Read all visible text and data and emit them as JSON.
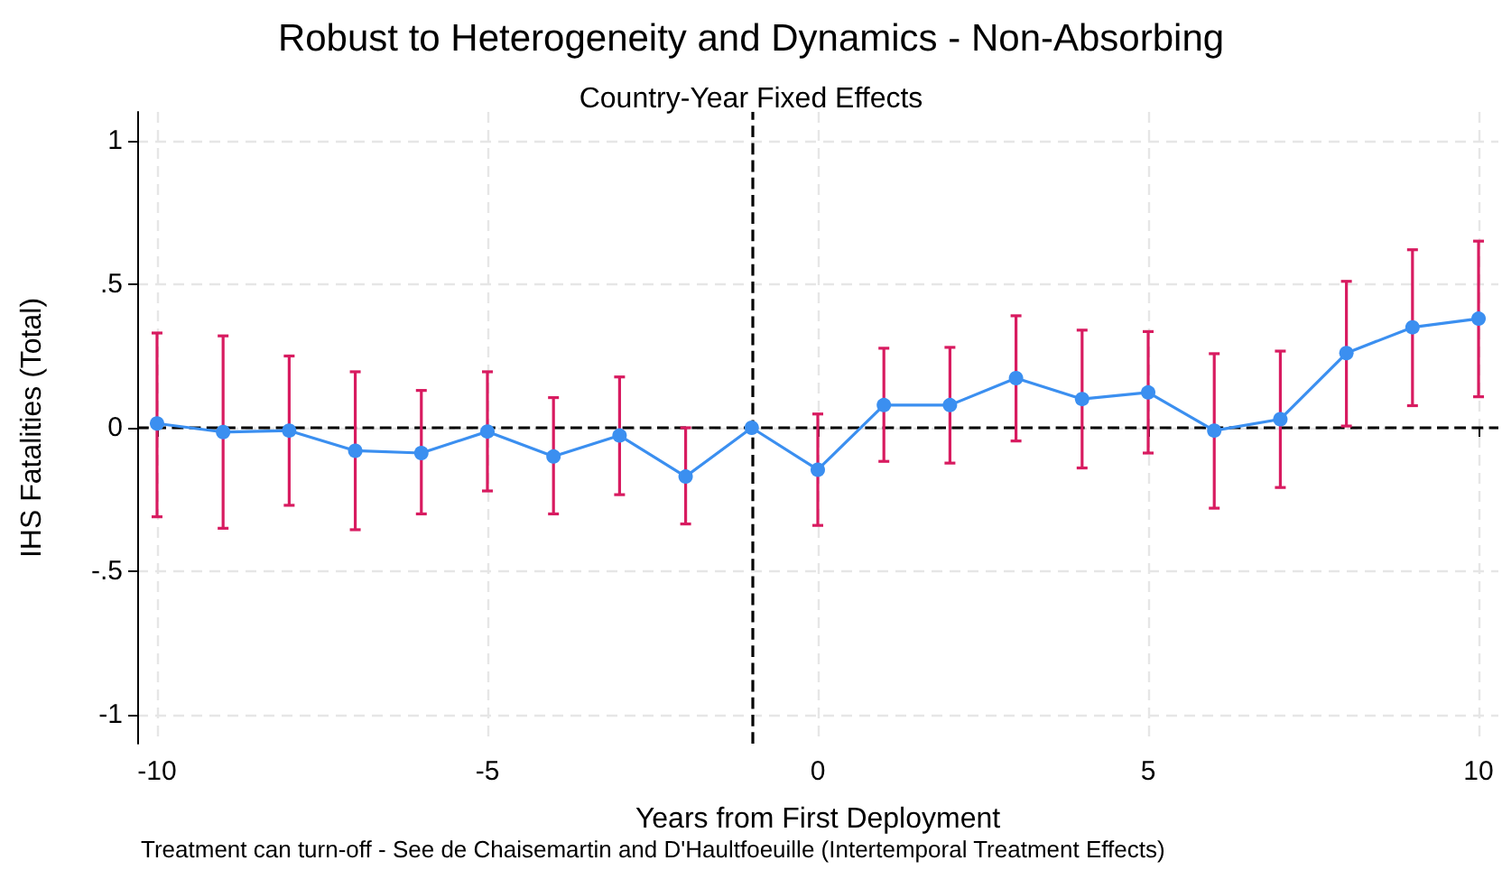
{
  "chart_data": {
    "type": "line",
    "title": "Robust to Heterogeneity and Dynamics - Non-Absorbing",
    "subtitle": "Country-Year Fixed Effects",
    "xlabel": "Years from First Deployment",
    "ylabel": "IHS Fatalities (Total)",
    "annotations": [
      "Treatment can turn-off - See de Chaisemartin and D'Haultfoeuille (Intertemporal Treatment Effects)"
    ],
    "x": [
      -10,
      -9,
      -8,
      -7,
      -6,
      -5,
      -4,
      -3,
      -2,
      -1,
      0,
      1,
      2,
      3,
      4,
      5,
      6,
      7,
      8,
      9,
      10
    ],
    "series": [
      {
        "color": "#3b8ff0",
        "values": [
          0.015,
          -0.015,
          -0.01,
          -0.08,
          -0.088,
          -0.013,
          -0.1,
          -0.027,
          -0.17,
          0,
          -0.146,
          0.079,
          0.079,
          0.173,
          0.1,
          0.123,
          -0.01,
          0.03,
          0.26,
          0.35,
          0.38
        ],
        "errors": [
          [
            -0.31,
            0.33
          ],
          [
            -0.35,
            0.32
          ],
          [
            -0.27,
            0.25
          ],
          [
            -0.355,
            0.195
          ],
          [
            -0.3,
            0.13
          ],
          [
            -0.22,
            0.195
          ],
          [
            -0.3,
            0.105
          ],
          [
            -0.233,
            0.177
          ],
          [
            -0.335,
            0
          ],
          null,
          [
            -0.34,
            0.048
          ],
          [
            -0.117,
            0.277
          ],
          [
            -0.123,
            0.28
          ],
          [
            -0.046,
            0.39
          ],
          [
            -0.14,
            0.34
          ],
          [
            -0.088,
            0.335
          ],
          [
            -0.28,
            0.258
          ],
          [
            -0.208,
            0.267
          ],
          [
            0.006,
            0.51
          ],
          [
            0.077,
            0.62
          ],
          [
            0.108,
            0.65
          ]
        ]
      }
    ],
    "xlim": [
      -10.3,
      10.3
    ],
    "xticks": [
      -10,
      -5,
      0,
      5,
      10
    ],
    "ylim": [
      -1.1,
      1.1
    ],
    "yticks": [
      {
        "value": -1,
        "label": "-1"
      },
      {
        "value": -0.5,
        "label": "-.5"
      },
      0,
      {
        "value": 0.5,
        "label": ".5"
      },
      1
    ],
    "ref_lines": [
      {
        "axis": "y",
        "value": 0,
        "color": "#000000",
        "line_style": "dashed"
      },
      {
        "axis": "x",
        "value": -1,
        "color": "#000000",
        "line_style": "dashed"
      }
    ],
    "grid": true,
    "marker": "circle",
    "line_style": "solid"
  }
}
